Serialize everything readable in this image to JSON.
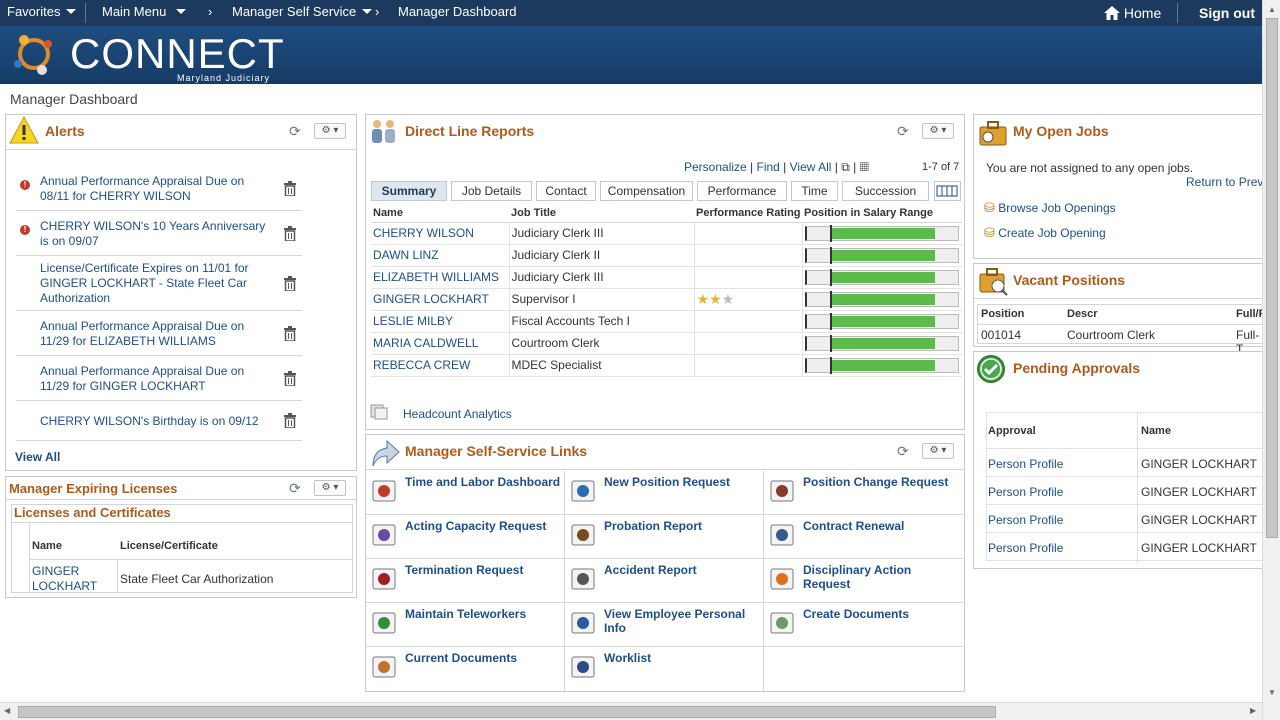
{
  "nav": {
    "favorites": "Favorites",
    "main_menu": "Main Menu",
    "crumb1": "Manager Self Service",
    "crumb2": "Manager Dashboard",
    "home": "Home",
    "signout": "Sign out"
  },
  "banner": {
    "logo": "CONNECT",
    "sub": "Maryland Judiciary"
  },
  "page_title": "Manager Dashboard",
  "alerts": {
    "title": "Alerts",
    "items": [
      {
        "text": "Annual Performance Appraisal Due on 08/11 for CHERRY WILSON",
        "icon": "alert-icon"
      },
      {
        "text": "CHERRY WILSON's 10 Years Anniversary is on 09/07",
        "icon": "alert-icon"
      },
      {
        "text": "License/Certificate Expires on 11/01 for GINGER LOCKHART - State Fleet Car Authorization",
        "icon": ""
      },
      {
        "text": "Annual Performance Appraisal Due on 11/29 for ELIZABETH WILLIAMS",
        "icon": ""
      },
      {
        "text": "Annual Performance Appraisal Due on 11/29 for GINGER LOCKHART",
        "icon": ""
      },
      {
        "text": "CHERRY WILSON's Birthday is on 09/12",
        "icon": ""
      }
    ],
    "view_all": "View All"
  },
  "licenses": {
    "title": "Manager Expiring Licenses",
    "subtitle": "Licenses and Certificates",
    "col_name": "Name",
    "col_lic": "License/Certificate",
    "rows": [
      {
        "name": "GINGER LOCKHART",
        "lic": "State Fleet Car Authorization"
      }
    ]
  },
  "drl": {
    "title": "Direct Line Reports",
    "personalize": "Personalize",
    "find": "Find",
    "view_all": "View All",
    "count": "1-7 of 7",
    "tabs": [
      "Summary",
      "Job Details",
      "Contact",
      "Compensation",
      "Performance",
      "Time",
      "Succession"
    ],
    "columns": [
      "Name",
      "Job Title",
      "Performance Rating",
      "Position in Salary Range"
    ],
    "rows": [
      {
        "name": "CHERRY WILSON",
        "title": "Judiciary Clerk III",
        "rating": 0
      },
      {
        "name": "DAWN LINZ",
        "title": "Judiciary Clerk II",
        "rating": 0
      },
      {
        "name": "ELIZABETH WILLIAMS",
        "title": "Judiciary Clerk III",
        "rating": 0
      },
      {
        "name": "GINGER LOCKHART",
        "title": "Supervisor I",
        "rating": 2
      },
      {
        "name": "LESLIE MILBY",
        "title": "Fiscal Accounts Tech I",
        "rating": 0
      },
      {
        "name": "MARIA CALDWELL",
        "title": "Courtroom Clerk",
        "rating": 0
      },
      {
        "name": "REBECCA CREW",
        "title": "MDEC Specialist",
        "rating": 0
      }
    ],
    "headcount": "Headcount Analytics"
  },
  "mss": {
    "title": "Manager Self-Service Links",
    "links": [
      "Time and Labor Dashboard",
      "New Position Request",
      "Position Change Request",
      "Acting Capacity Request",
      "Probation Report",
      "Contract Renewal",
      "Termination Request",
      "Accident Report",
      "Disciplinary Action Request",
      "Maintain Teleworkers",
      "View Employee Personal Info",
      "Create Documents",
      "Current Documents",
      "Worklist",
      ""
    ]
  },
  "open_jobs": {
    "title": "My Open Jobs",
    "message": "You are not assigned to any open jobs.",
    "return": "Return to Prev",
    "browse": "Browse Job Openings",
    "create": "Create Job Opening"
  },
  "vacant": {
    "title": "Vacant Positions",
    "cols": [
      "Position",
      "Descr",
      "Full/P"
    ],
    "rows": [
      {
        "pos": "001014",
        "descr": "Courtroom Clerk",
        "full": "Full-T"
      }
    ]
  },
  "pending": {
    "title": "Pending Approvals",
    "cols": [
      "Approval",
      "Name"
    ],
    "rows": [
      {
        "approval": "Person Profile",
        "name": "GINGER LOCKHART"
      },
      {
        "approval": "Person Profile",
        "name": "GINGER LOCKHART"
      },
      {
        "approval": "Person Profile",
        "name": "GINGER LOCKHART"
      },
      {
        "approval": "Person Profile",
        "name": "GINGER LOCKHART"
      }
    ]
  },
  "colors": {
    "nav_bg": "#1c3a5e",
    "accent": "#b05a1a",
    "link": "#1e4e8c",
    "bar": "#5dbb4b"
  }
}
